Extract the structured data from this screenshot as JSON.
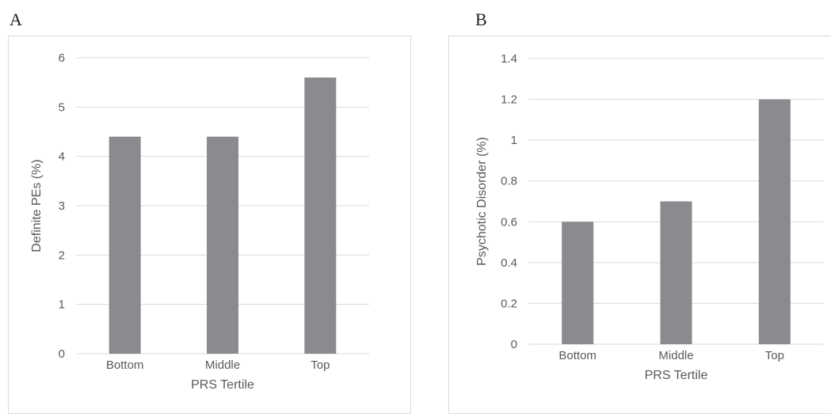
{
  "colors": {
    "bar": "#8b8b8f",
    "grid": "#d9d9d9",
    "tick": "#595959"
  },
  "chart_data": [
    {
      "panel": "A",
      "type": "bar",
      "categories": [
        "Bottom",
        "Middle",
        "Top"
      ],
      "values": [
        4.4,
        4.4,
        5.6
      ],
      "xlabel": "PRS Tertile",
      "ylabel": "Definite PEs (%)",
      "ylim": [
        0,
        6
      ],
      "yticks": [
        "0",
        "1",
        "2",
        "3",
        "4",
        "5",
        "6"
      ],
      "grid": true,
      "legend": "none"
    },
    {
      "panel": "B",
      "type": "bar",
      "categories": [
        "Bottom",
        "Middle",
        "Top"
      ],
      "values": [
        0.6,
        0.7,
        1.2
      ],
      "xlabel": "PRS Tertile",
      "ylabel": "Psychotic Disorder (%)",
      "ylim": [
        0,
        1.4
      ],
      "yticks": [
        "0",
        "0.2",
        "0.4",
        "0.6",
        "0.8",
        "1",
        "1.2",
        "1.4"
      ],
      "grid": true,
      "legend": "none"
    }
  ]
}
